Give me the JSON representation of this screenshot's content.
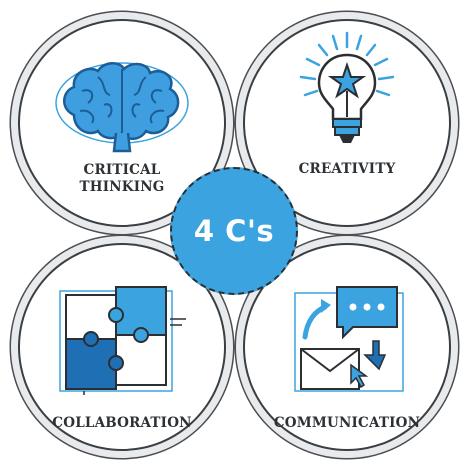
{
  "center": {
    "title": "4 C's"
  },
  "quadrants": [
    {
      "id": "critical-thinking",
      "label_lines": [
        "CRITICAL",
        "THINKING"
      ],
      "icon": "brain-icon"
    },
    {
      "id": "creativity",
      "label_lines": [
        "CREATIVITY"
      ],
      "icon": "lightbulb-star-icon"
    },
    {
      "id": "collaboration",
      "label_lines": [
        "COLLABORATION"
      ],
      "icon": "puzzle-icon"
    },
    {
      "id": "communication",
      "label_lines": [
        "COMMUNICATION"
      ],
      "icon": "message-envelope-icon"
    }
  ],
  "colors": {
    "accent_blue": "#3aa3e0",
    "dark_blue": "#1f6fb5",
    "light_blue": "#a9d6f3",
    "outline": "#2b2f33",
    "ring_gray": "#e9eaec"
  }
}
